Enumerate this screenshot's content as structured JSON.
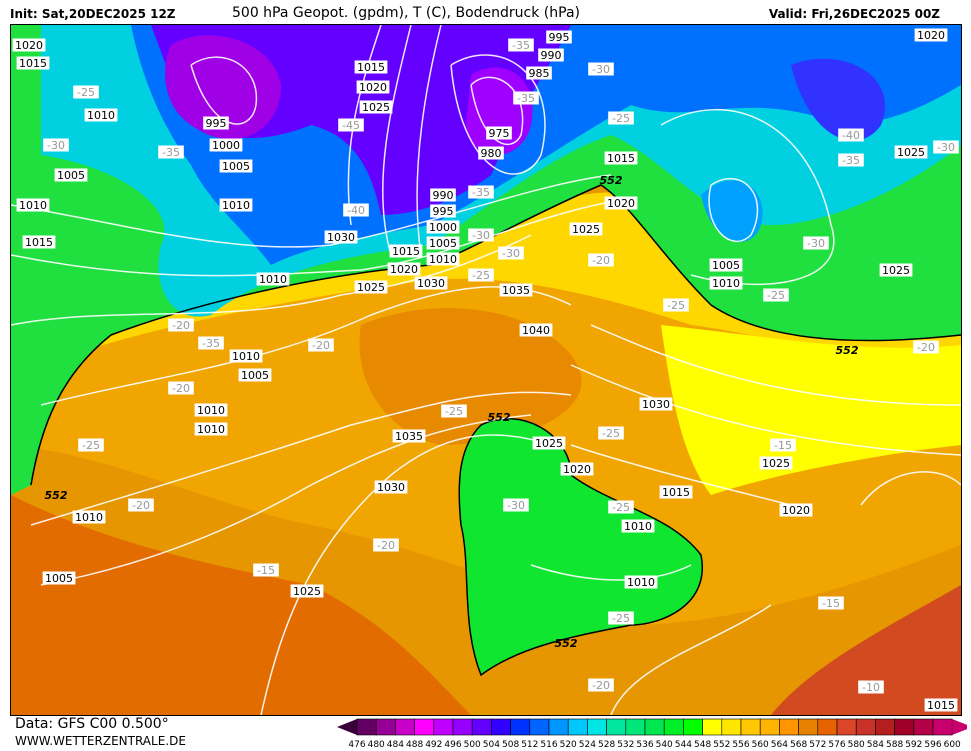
{
  "header": {
    "init": "Init: Sat,20DEC2025 12Z",
    "title": "500 hPa Geopot. (gpdm), T (C), Bodendruck (hPa)",
    "valid": "Valid: Fri,26DEC2025 00Z"
  },
  "footer": {
    "data_source": "Data: GFS C00 0.500°",
    "website": "WWW.WETTERZENTRALE.DE"
  },
  "colorbar": {
    "labels": [
      "476",
      "480",
      "484",
      "488",
      "492",
      "496",
      "500",
      "504",
      "508",
      "512",
      "516",
      "520",
      "524",
      "528",
      "532",
      "536",
      "540",
      "544",
      "548",
      "552",
      "556",
      "560",
      "564",
      "568",
      "572",
      "576",
      "580",
      "584",
      "588",
      "592",
      "596",
      "600"
    ],
    "colors": [
      "#3a0038",
      "#640064",
      "#960096",
      "#c800c8",
      "#ff00ff",
      "#c000ff",
      "#9600ff",
      "#6400ff",
      "#3200ff",
      "#0032ff",
      "#0064ff",
      "#0096ff",
      "#00c8ff",
      "#00e6e6",
      "#00e6a0",
      "#00e678",
      "#00e650",
      "#00f028",
      "#00ff00",
      "#ffff00",
      "#ffe600",
      "#ffc800",
      "#ffb400",
      "#ff9600",
      "#e68200",
      "#e66400",
      "#dc4628",
      "#c83228",
      "#b41e1e",
      "#a00028",
      "#b40046",
      "#c8006e"
    ]
  },
  "map": {
    "pressure_labels": [
      "1020",
      "1015",
      "1010",
      "1005",
      "1010",
      "1015",
      "995",
      "1000",
      "1005",
      "1010",
      "1010",
      "1015",
      "1020",
      "1025",
      "995",
      "990",
      "985",
      "975",
      "980",
      "990",
      "995",
      "1000",
      "1005",
      "1010",
      "1015",
      "1020",
      "1025",
      "1030",
      "1030",
      "1035",
      "1040",
      "1015",
      "1020",
      "1025",
      "1010",
      "1005",
      "1020",
      "1025",
      "1010",
      "1005",
      "1010",
      "1035",
      "1030",
      "1025",
      "1030",
      "1025",
      "1020",
      "1015",
      "1025",
      "1020",
      "1010",
      "1010",
      "1010",
      "1005",
      "1010",
      "1025",
      "1015"
    ],
    "temperature_labels": [
      "-25",
      "-30",
      "-35",
      "-45",
      "-35",
      "-30",
      "-35",
      "-40",
      "-35",
      "-30",
      "-25",
      "-25",
      "-20",
      "-25",
      "-20",
      "-40",
      "-35",
      "-30",
      "-30",
      "-25",
      "-30",
      "-35",
      "-20",
      "-20",
      "-25",
      "-25",
      "-20",
      "-15",
      "-25",
      "-30",
      "-25",
      "-20",
      "-15",
      "-20",
      "-25",
      "-20",
      "-15",
      "-10"
    ],
    "contour_552_label": "552"
  }
}
